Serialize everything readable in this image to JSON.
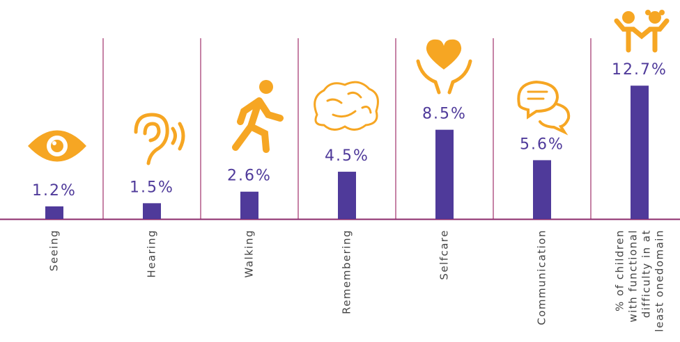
{
  "chart_data": {
    "type": "bar",
    "categories": [
      "Seeing",
      "Hearing",
      "Walking",
      "Remembering",
      "Selfcare",
      "Communication",
      "% of children\nwith functional\ndifficulty in at\nleast onedomain"
    ],
    "values": [
      1.2,
      1.5,
      2.6,
      4.5,
      8.5,
      5.6,
      12.7
    ],
    "value_labels": [
      "1.2%",
      "1.5%",
      "2.6%",
      "4.5%",
      "8.5%",
      "5.6%",
      "12.7%"
    ],
    "color": "#4f3a9a"
  }
}
